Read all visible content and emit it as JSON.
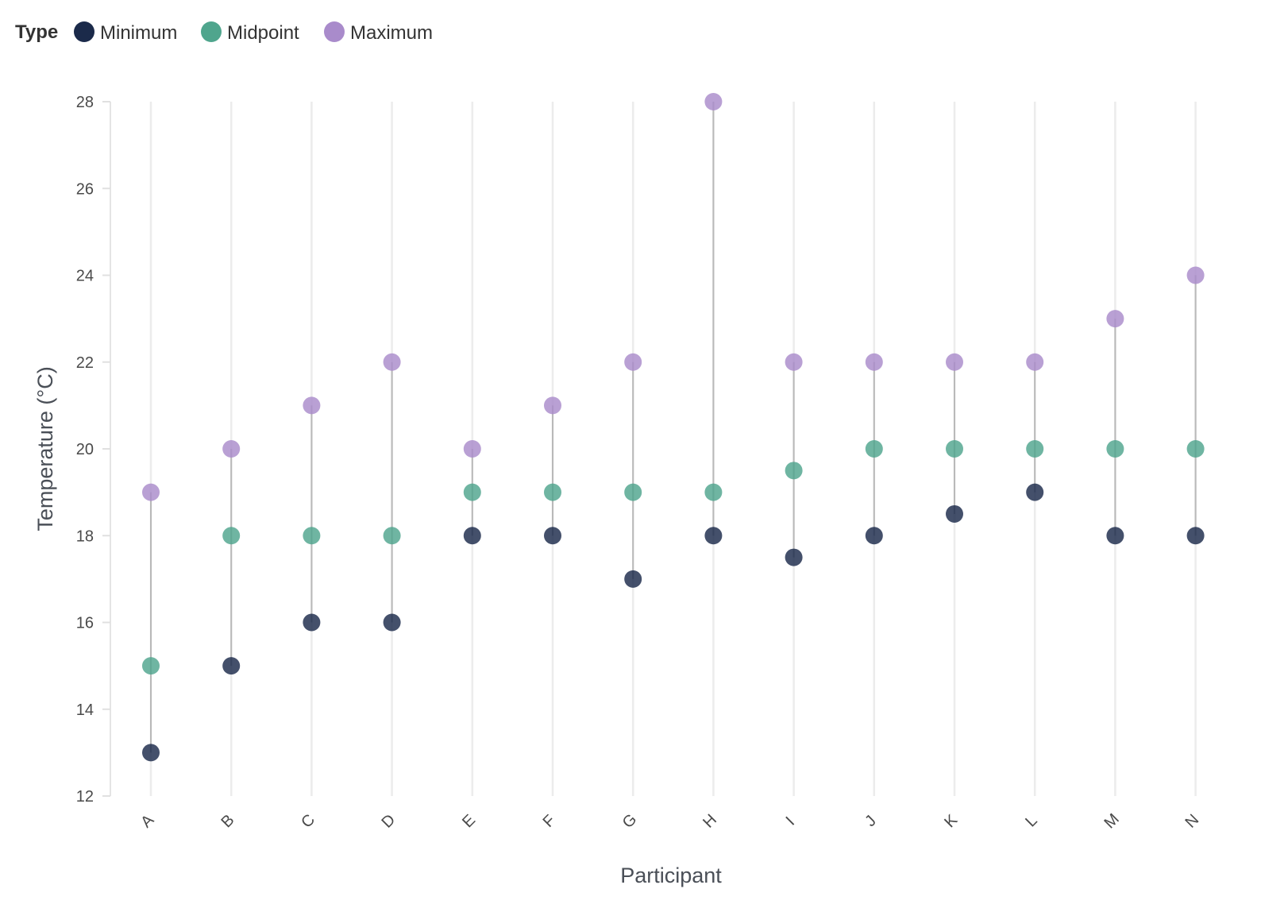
{
  "chart_data": {
    "type": "scatter",
    "title": "",
    "xlabel": "Participant",
    "ylabel": "Temperature (°C)",
    "ylim": [
      12,
      28
    ],
    "yticks": [
      12,
      14,
      16,
      18,
      20,
      22,
      24,
      26,
      28
    ],
    "grid": "vertical",
    "legend": {
      "title": "Type",
      "placement": "top-left",
      "entries": [
        {
          "name": "Minimum",
          "color": "#1b2a4a"
        },
        {
          "name": "Midpoint",
          "color": "#4fa58d"
        },
        {
          "name": "Maximum",
          "color": "#a98bcb"
        }
      ]
    },
    "categories": [
      "A",
      "B",
      "C",
      "D",
      "E",
      "F",
      "G",
      "H",
      "I",
      "J",
      "K",
      "L",
      "M",
      "N"
    ],
    "series": [
      {
        "name": "Minimum",
        "color": "#1b2a4a",
        "values": [
          13,
          15,
          16,
          16,
          18,
          18,
          17,
          18,
          17.5,
          18,
          18.5,
          19,
          18,
          18
        ]
      },
      {
        "name": "Midpoint",
        "color": "#4fa58d",
        "values": [
          15,
          18,
          18,
          18,
          19,
          19,
          19,
          19,
          19.5,
          20,
          20,
          20,
          20,
          20
        ]
      },
      {
        "name": "Maximum",
        "color": "#a98bcb",
        "values": [
          19,
          20,
          21,
          22,
          20,
          21,
          22,
          28,
          22,
          22,
          22,
          22,
          23,
          24
        ]
      }
    ]
  }
}
